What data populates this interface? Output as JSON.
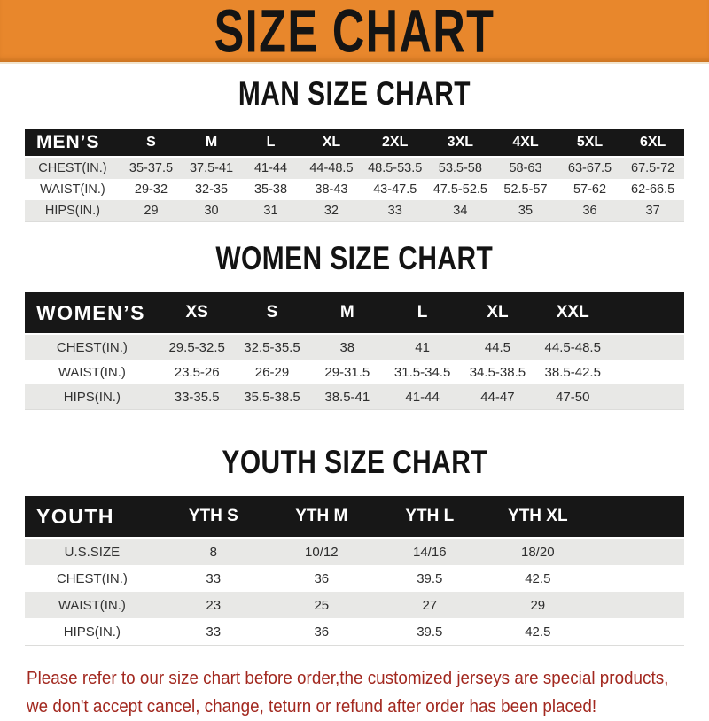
{
  "banner": {
    "title": "SIZE CHART",
    "background_color": "#e8872c",
    "title_color": "#141414"
  },
  "sections": {
    "men": {
      "heading": "MAN SIZE CHART",
      "table": {
        "header": [
          "MEN’S",
          "S",
          "M",
          "L",
          "XL",
          "2XL",
          "3XL",
          "4XL",
          "5XL",
          "6XL"
        ],
        "rows": [
          [
            "CHEST(IN.)",
            "35-37.5",
            "37.5-41",
            "41-44",
            "44-48.5",
            "48.5-53.5",
            "53.5-58",
            "58-63",
            "63-67.5",
            "67.5-72"
          ],
          [
            "WAIST(IN.)",
            "29-32",
            "32-35",
            "35-38",
            "38-43",
            "43-47.5",
            "47.5-52.5",
            "52.5-57",
            "57-62",
            "62-66.5"
          ],
          [
            "HIPS(IN.)",
            "29",
            "30",
            "31",
            "32",
            "33",
            "34",
            "35",
            "36",
            "37"
          ]
        ]
      }
    },
    "women": {
      "heading": "WOMEN SIZE CHART",
      "table": {
        "header": [
          "WOMEN’S",
          "XS",
          "S",
          "M",
          "L",
          "XL",
          "XXL"
        ],
        "rows": [
          [
            "CHEST(IN.)",
            "29.5-32.5",
            "32.5-35.5",
            "38",
            "41",
            "44.5",
            "44.5-48.5"
          ],
          [
            "WAIST(IN.)",
            "23.5-26",
            "26-29",
            "29-31.5",
            "31.5-34.5",
            "34.5-38.5",
            "38.5-42.5"
          ],
          [
            "HIPS(IN.)",
            "33-35.5",
            "35.5-38.5",
            "38.5-41",
            "41-44",
            "44-47",
            "47-50"
          ]
        ]
      }
    },
    "youth": {
      "heading": "YOUTH SIZE CHART",
      "table": {
        "header": [
          "YOUTH",
          "YTH S",
          "YTH M",
          "YTH L",
          "YTH XL"
        ],
        "rows": [
          [
            "U.S.SIZE",
            "8",
            "10/12",
            "14/16",
            "18/20"
          ],
          [
            "CHEST(IN.)",
            "33",
            "36",
            "39.5",
            "42.5"
          ],
          [
            "WAIST(IN.)",
            "23",
            "25",
            "27",
            "29"
          ],
          [
            "HIPS(IN.)",
            "33",
            "36",
            "39.5",
            "42.5"
          ]
        ]
      }
    }
  },
  "disclaimer": {
    "lines": [
      "Please refer to our size chart before order,the customized jerseys are special products,",
      "we don't accept cancel, change, teturn or refund after order has been placed!"
    ],
    "text_color": "#a2281f"
  },
  "colors": {
    "banner_orange": "#e8872c",
    "table_header_black": "#171717",
    "row_gray": "#e8e8e6",
    "row_white": "#ffffff"
  }
}
